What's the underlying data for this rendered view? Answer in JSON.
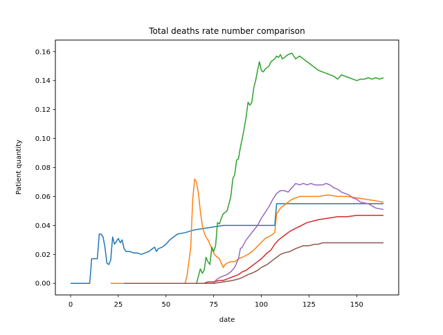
{
  "chart_data": {
    "type": "line",
    "title": "Total deaths rate number comparison",
    "xlabel": "date",
    "ylabel": "Patient quantity",
    "xlim": [
      -8,
      172
    ],
    "ylim": [
      -0.008,
      0.168
    ],
    "xticks": [
      0,
      25,
      50,
      75,
      100,
      125,
      150
    ],
    "yticks": [
      0.0,
      0.02,
      0.04,
      0.06,
      0.08,
      0.1,
      0.12,
      0.14,
      0.16
    ],
    "ytick_labels": [
      "0.00",
      "0.02",
      "0.04",
      "0.06",
      "0.08",
      "0.10",
      "0.12",
      "0.14",
      "0.16"
    ],
    "grid": false,
    "legend": "none",
    "series": [
      {
        "color": "#1f77b4",
        "points": [
          [
            0,
            0
          ],
          [
            10,
            0
          ],
          [
            11,
            0.017
          ],
          [
            14,
            0.017
          ],
          [
            15,
            0.034
          ],
          [
            16,
            0.034
          ],
          [
            17,
            0.032
          ],
          [
            18,
            0.025
          ],
          [
            19,
            0.014
          ],
          [
            20,
            0.013
          ],
          [
            21,
            0.016
          ],
          [
            22,
            0.032
          ],
          [
            23,
            0.027
          ],
          [
            24,
            0.029
          ],
          [
            25,
            0.031
          ],
          [
            26,
            0.028
          ],
          [
            27,
            0.03
          ],
          [
            28,
            0.024
          ],
          [
            29,
            0.022
          ],
          [
            31,
            0.022
          ],
          [
            33,
            0.021
          ],
          [
            35,
            0.021
          ],
          [
            37,
            0.02
          ],
          [
            39,
            0.021
          ],
          [
            41,
            0.022
          ],
          [
            43,
            0.024
          ],
          [
            44,
            0.025
          ],
          [
            45,
            0.022
          ],
          [
            46,
            0.024
          ],
          [
            48,
            0.025
          ],
          [
            50,
            0.027
          ],
          [
            52,
            0.03
          ],
          [
            54,
            0.032
          ],
          [
            56,
            0.034
          ],
          [
            60,
            0.035
          ],
          [
            65,
            0.037
          ],
          [
            70,
            0.038
          ],
          [
            75,
            0.039
          ],
          [
            80,
            0.04
          ],
          [
            90,
            0.04
          ],
          [
            100,
            0.04
          ],
          [
            107,
            0.04
          ],
          [
            108,
            0.055
          ],
          [
            120,
            0.055
          ],
          [
            140,
            0.055
          ],
          [
            164,
            0.055
          ]
        ]
      },
      {
        "color": "#ff7f0e",
        "points": [
          [
            21,
            0
          ],
          [
            55,
            0
          ],
          [
            60,
            0
          ],
          [
            61,
            0.005
          ],
          [
            62,
            0.015
          ],
          [
            63,
            0.025
          ],
          [
            64,
            0.058
          ],
          [
            65,
            0.072
          ],
          [
            66,
            0.07
          ],
          [
            67,
            0.062
          ],
          [
            68,
            0.05
          ],
          [
            69,
            0.04
          ],
          [
            70,
            0.035
          ],
          [
            71,
            0.032
          ],
          [
            72,
            0.03
          ],
          [
            73,
            0.027
          ],
          [
            74,
            0.024
          ],
          [
            75,
            0.021
          ],
          [
            76,
            0.019
          ],
          [
            77,
            0.018
          ],
          [
            78,
            0.017
          ],
          [
            79,
            0.014
          ],
          [
            80,
            0.011
          ],
          [
            81,
            0.013
          ],
          [
            82,
            0.014
          ],
          [
            84,
            0.015
          ],
          [
            86,
            0.015
          ],
          [
            88,
            0.017
          ],
          [
            90,
            0.018
          ],
          [
            93,
            0.02
          ],
          [
            96,
            0.023
          ],
          [
            99,
            0.027
          ],
          [
            102,
            0.031
          ],
          [
            105,
            0.033
          ],
          [
            107,
            0.035
          ],
          [
            108,
            0.048
          ],
          [
            110,
            0.052
          ],
          [
            113,
            0.055
          ],
          [
            116,
            0.058
          ],
          [
            120,
            0.06
          ],
          [
            125,
            0.06
          ],
          [
            130,
            0.06
          ],
          [
            135,
            0.061
          ],
          [
            140,
            0.06
          ],
          [
            145,
            0.06
          ],
          [
            150,
            0.059
          ],
          [
            155,
            0.058
          ],
          [
            160,
            0.057
          ],
          [
            164,
            0.056
          ]
        ]
      },
      {
        "color": "#2ca02c",
        "points": [
          [
            28,
            0
          ],
          [
            60,
            0
          ],
          [
            66,
            0
          ],
          [
            67,
            0.005
          ],
          [
            68,
            0.01
          ],
          [
            69,
            0.007
          ],
          [
            70,
            0.009
          ],
          [
            71,
            0.018
          ],
          [
            72,
            0.015
          ],
          [
            73,
            0.013
          ],
          [
            74,
            0.025
          ],
          [
            75,
            0.022
          ],
          [
            76,
            0.026
          ],
          [
            77,
            0.042
          ],
          [
            78,
            0.041
          ],
          [
            79,
            0.045
          ],
          [
            80,
            0.048
          ],
          [
            81,
            0.049
          ],
          [
            82,
            0.05
          ],
          [
            83,
            0.055
          ],
          [
            84,
            0.06
          ],
          [
            85,
            0.072
          ],
          [
            86,
            0.075
          ],
          [
            87,
            0.085
          ],
          [
            88,
            0.086
          ],
          [
            89,
            0.094
          ],
          [
            90,
            0.1
          ],
          [
            91,
            0.107
          ],
          [
            92,
            0.115
          ],
          [
            93,
            0.125
          ],
          [
            94,
            0.123
          ],
          [
            95,
            0.125
          ],
          [
            96,
            0.135
          ],
          [
            97,
            0.14
          ],
          [
            98,
            0.147
          ],
          [
            99,
            0.153
          ],
          [
            100,
            0.147
          ],
          [
            101,
            0.146
          ],
          [
            102,
            0.148
          ],
          [
            104,
            0.15
          ],
          [
            105,
            0.153
          ],
          [
            107,
            0.155
          ],
          [
            108,
            0.157
          ],
          [
            109,
            0.156
          ],
          [
            110,
            0.158
          ],
          [
            111,
            0.155
          ],
          [
            112,
            0.156
          ],
          [
            114,
            0.158
          ],
          [
            116,
            0.159
          ],
          [
            117,
            0.157
          ],
          [
            118,
            0.155
          ],
          [
            120,
            0.157
          ],
          [
            122,
            0.155
          ],
          [
            124,
            0.153
          ],
          [
            126,
            0.151
          ],
          [
            128,
            0.149
          ],
          [
            130,
            0.147
          ],
          [
            132,
            0.146
          ],
          [
            134,
            0.145
          ],
          [
            136,
            0.144
          ],
          [
            138,
            0.143
          ],
          [
            140,
            0.141
          ],
          [
            142,
            0.144
          ],
          [
            144,
            0.143
          ],
          [
            146,
            0.142
          ],
          [
            148,
            0.141
          ],
          [
            150,
            0.14
          ],
          [
            152,
            0.141
          ],
          [
            154,
            0.141
          ],
          [
            156,
            0.142
          ],
          [
            158,
            0.141
          ],
          [
            160,
            0.142
          ],
          [
            162,
            0.141
          ],
          [
            164,
            0.142
          ]
        ]
      },
      {
        "color": "#d62728",
        "points": [
          [
            28,
            0
          ],
          [
            60,
            0
          ],
          [
            70,
            0
          ],
          [
            72,
            0.001
          ],
          [
            75,
            0.001
          ],
          [
            78,
            0.002
          ],
          [
            80,
            0.002
          ],
          [
            82,
            0.003
          ],
          [
            84,
            0.004
          ],
          [
            86,
            0.005
          ],
          [
            88,
            0.006
          ],
          [
            90,
            0.008
          ],
          [
            92,
            0.009
          ],
          [
            95,
            0.012
          ],
          [
            98,
            0.015
          ],
          [
            100,
            0.017
          ],
          [
            103,
            0.021
          ],
          [
            105,
            0.023
          ],
          [
            107,
            0.027
          ],
          [
            109,
            0.03
          ],
          [
            112,
            0.033
          ],
          [
            115,
            0.036
          ],
          [
            118,
            0.038
          ],
          [
            121,
            0.04
          ],
          [
            124,
            0.042
          ],
          [
            127,
            0.043
          ],
          [
            130,
            0.044
          ],
          [
            135,
            0.045
          ],
          [
            140,
            0.046
          ],
          [
            145,
            0.046
          ],
          [
            150,
            0.047
          ],
          [
            155,
            0.047
          ],
          [
            160,
            0.047
          ],
          [
            164,
            0.047
          ]
        ]
      },
      {
        "color": "#9467bd",
        "points": [
          [
            28,
            0
          ],
          [
            60,
            0
          ],
          [
            75,
            0
          ],
          [
            76,
            0.002
          ],
          [
            78,
            0.004
          ],
          [
            80,
            0.005
          ],
          [
            82,
            0.006
          ],
          [
            84,
            0.008
          ],
          [
            86,
            0.011
          ],
          [
            88,
            0.017
          ],
          [
            89,
            0.024
          ],
          [
            90,
            0.025
          ],
          [
            92,
            0.03
          ],
          [
            95,
            0.035
          ],
          [
            98,
            0.04
          ],
          [
            100,
            0.045
          ],
          [
            102,
            0.049
          ],
          [
            104,
            0.053
          ],
          [
            106,
            0.058
          ],
          [
            108,
            0.062
          ],
          [
            110,
            0.064
          ],
          [
            112,
            0.064
          ],
          [
            114,
            0.063
          ],
          [
            116,
            0.066
          ],
          [
            118,
            0.069
          ],
          [
            120,
            0.068
          ],
          [
            122,
            0.069
          ],
          [
            124,
            0.068
          ],
          [
            126,
            0.069
          ],
          [
            128,
            0.068
          ],
          [
            130,
            0.068
          ],
          [
            132,
            0.068
          ],
          [
            134,
            0.069
          ],
          [
            136,
            0.068
          ],
          [
            138,
            0.066
          ],
          [
            140,
            0.065
          ],
          [
            142,
            0.063
          ],
          [
            144,
            0.062
          ],
          [
            146,
            0.061
          ],
          [
            148,
            0.059
          ],
          [
            150,
            0.058
          ],
          [
            152,
            0.056
          ],
          [
            156,
            0.055
          ],
          [
            160,
            0.052
          ],
          [
            164,
            0.051
          ]
        ]
      },
      {
        "color": "#8c564b",
        "points": [
          [
            28,
            0
          ],
          [
            60,
            0
          ],
          [
            75,
            0
          ],
          [
            80,
            0.001
          ],
          [
            85,
            0.002
          ],
          [
            88,
            0.003
          ],
          [
            90,
            0.004
          ],
          [
            93,
            0.006
          ],
          [
            95,
            0.007
          ],
          [
            98,
            0.009
          ],
          [
            100,
            0.011
          ],
          [
            103,
            0.013
          ],
          [
            106,
            0.016
          ],
          [
            108,
            0.018
          ],
          [
            110,
            0.02
          ],
          [
            112,
            0.021
          ],
          [
            115,
            0.022
          ],
          [
            118,
            0.024
          ],
          [
            120,
            0.025
          ],
          [
            122,
            0.026
          ],
          [
            125,
            0.026
          ],
          [
            128,
            0.027
          ],
          [
            130,
            0.027
          ],
          [
            132,
            0.028
          ],
          [
            135,
            0.028
          ],
          [
            140,
            0.028
          ],
          [
            145,
            0.028
          ],
          [
            150,
            0.028
          ],
          [
            155,
            0.028
          ],
          [
            160,
            0.028
          ],
          [
            164,
            0.028
          ]
        ]
      }
    ]
  }
}
